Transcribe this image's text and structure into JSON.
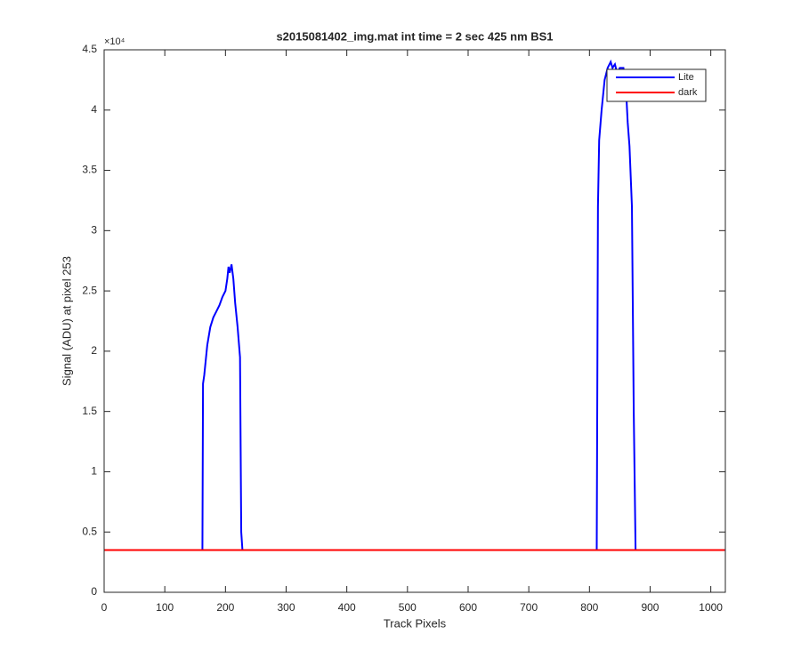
{
  "chart_data": {
    "type": "line",
    "title": "s2015081402_img.mat int time = 2 sec  425 nm BS1",
    "x_label": "Track Pixels",
    "y_label": "Signal (ADU) at pixel 253",
    "y_exponent": "×10⁴",
    "xlim": [
      0,
      1024
    ],
    "xticks": [
      0,
      100,
      200,
      300,
      400,
      500,
      600,
      700,
      800,
      900,
      1000
    ],
    "ylim": [
      0,
      4.5
    ],
    "yticks": [
      0,
      0.5,
      1,
      1.5,
      2,
      2.5,
      3,
      3.5,
      4,
      4.5
    ],
    "grid": false,
    "legend": "northeast",
    "series": [
      {
        "name": "Lite",
        "color": "#0000ff",
        "x": [
          0,
          162,
          163,
          165,
          170,
          175,
          180,
          185,
          190,
          195,
          200,
          203,
          205,
          207,
          210,
          213,
          216,
          220,
          224,
          226,
          228,
          400,
          600,
          812,
          814,
          816,
          820,
          825,
          830,
          835,
          838,
          842,
          846,
          850,
          856,
          860,
          863,
          866,
          870,
          873,
          876,
          1023
        ],
        "values": [
          0.35,
          0.35,
          1.73,
          1.8,
          2.05,
          2.2,
          2.28,
          2.33,
          2.38,
          2.45,
          2.5,
          2.6,
          2.7,
          2.65,
          2.72,
          2.6,
          2.4,
          2.2,
          1.95,
          0.5,
          0.35,
          0.35,
          0.35,
          0.35,
          3.2,
          3.75,
          4.0,
          4.25,
          4.35,
          4.4,
          4.35,
          4.38,
          4.3,
          4.35,
          4.35,
          4.2,
          3.9,
          3.7,
          3.2,
          1.5,
          0.35,
          0.35
        ]
      },
      {
        "name": "dark",
        "color": "#ff0000",
        "x": [
          0,
          1023
        ],
        "values": [
          0.35,
          0.35
        ]
      }
    ]
  }
}
